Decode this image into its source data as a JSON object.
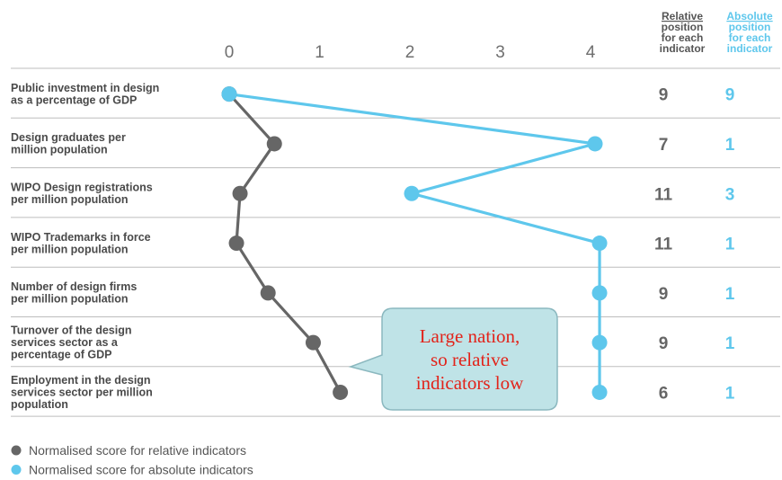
{
  "colors": {
    "relative": "#666666",
    "absolute": "#5ec7ec",
    "callout_fill": "#bfe3e7",
    "callout_stroke": "#8bb8bf",
    "callout_text": "#e2231a",
    "rule": "#bdbdbd"
  },
  "headers": {
    "relative": [
      "Relative",
      "position",
      "for each",
      "indicator"
    ],
    "absolute": [
      "Absolute",
      "position",
      "for each",
      "indicator"
    ]
  },
  "callout": {
    "lines": [
      "Large nation,",
      "so relative",
      "indicators low"
    ]
  },
  "legend": [
    {
      "label": "Normalised score for relative indicators",
      "color_key": "relative"
    },
    {
      "label": "Normalised score for absolute indicators",
      "color_key": "absolute"
    }
  ],
  "chart_data": {
    "type": "line",
    "x_ticks": [
      0,
      1,
      2,
      3,
      4
    ],
    "xlim": [
      0,
      4
    ],
    "grid": false,
    "legend_position": "bottom-left",
    "rows": [
      {
        "label": [
          "Public investment in design",
          "as a percentage of GDP"
        ],
        "relative_score": 0.0,
        "absolute_score": 0.0,
        "relative_position": "9",
        "absolute_position": "9"
      },
      {
        "label": [
          "Design graduates per",
          "million population"
        ],
        "relative_score": 0.5,
        "absolute_score": 4.05,
        "relative_position": "7",
        "absolute_position": "1"
      },
      {
        "label": [
          "WIPO Design registrations",
          "per million population"
        ],
        "relative_score": 0.12,
        "absolute_score": 2.02,
        "relative_position": "11",
        "absolute_position": "3"
      },
      {
        "label": [
          "WIPO Trademarks in force",
          "per million population"
        ],
        "relative_score": 0.08,
        "absolute_score": 4.1,
        "relative_position": "11",
        "absolute_position": "1"
      },
      {
        "label": [
          "Number of design firms",
          "per million population"
        ],
        "relative_score": 0.43,
        "absolute_score": 4.1,
        "relative_position": "9",
        "absolute_position": "1"
      },
      {
        "label": [
          "Turnover of the design",
          "services sector as a",
          "percentage of GDP"
        ],
        "relative_score": 0.93,
        "absolute_score": 4.1,
        "relative_position": "9",
        "absolute_position": "1"
      },
      {
        "label": [
          "Employment in the design",
          "services sector per million",
          "population"
        ],
        "relative_score": 1.23,
        "absolute_score": 4.1,
        "relative_position": "6",
        "absolute_position": "1"
      }
    ]
  }
}
